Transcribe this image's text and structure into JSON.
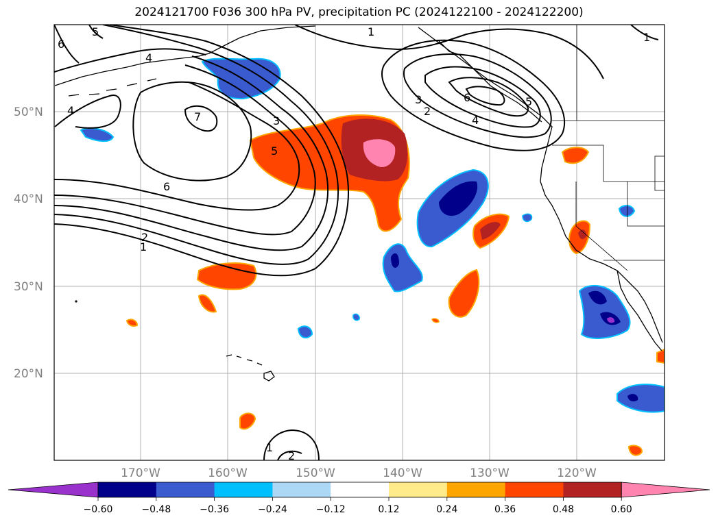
{
  "title": "2024121700 F036 300 hPa PV, precipitation PC (2024122100 - 2024122200)",
  "lat_labels": [
    "50°N",
    "40°N",
    "30°N",
    "20°N"
  ],
  "lon_labels": [
    "170°W",
    "160°W",
    "150°W",
    "140°W",
    "130°W",
    "120°W"
  ],
  "colorbar": {
    "ticks": [
      "−0.60",
      "−0.48",
      "−0.36",
      "−0.24",
      "−0.12",
      "0.12",
      "0.24",
      "0.36",
      "0.48",
      "0.60"
    ],
    "colors": [
      "#9932cc",
      "#00008b",
      "#3a5bd0",
      "#00bfff",
      "#add8f5",
      "#ffffff",
      "#ffeb8a",
      "#ffa500",
      "#ff4500",
      "#b22222",
      "#ff85b0"
    ]
  },
  "contour_labels": [
    "1",
    "2",
    "3",
    "4",
    "5",
    "6",
    "7"
  ],
  "colors": {
    "grid": "#b0b0b0",
    "axis": "#000000",
    "tick_text": "#808080"
  }
}
